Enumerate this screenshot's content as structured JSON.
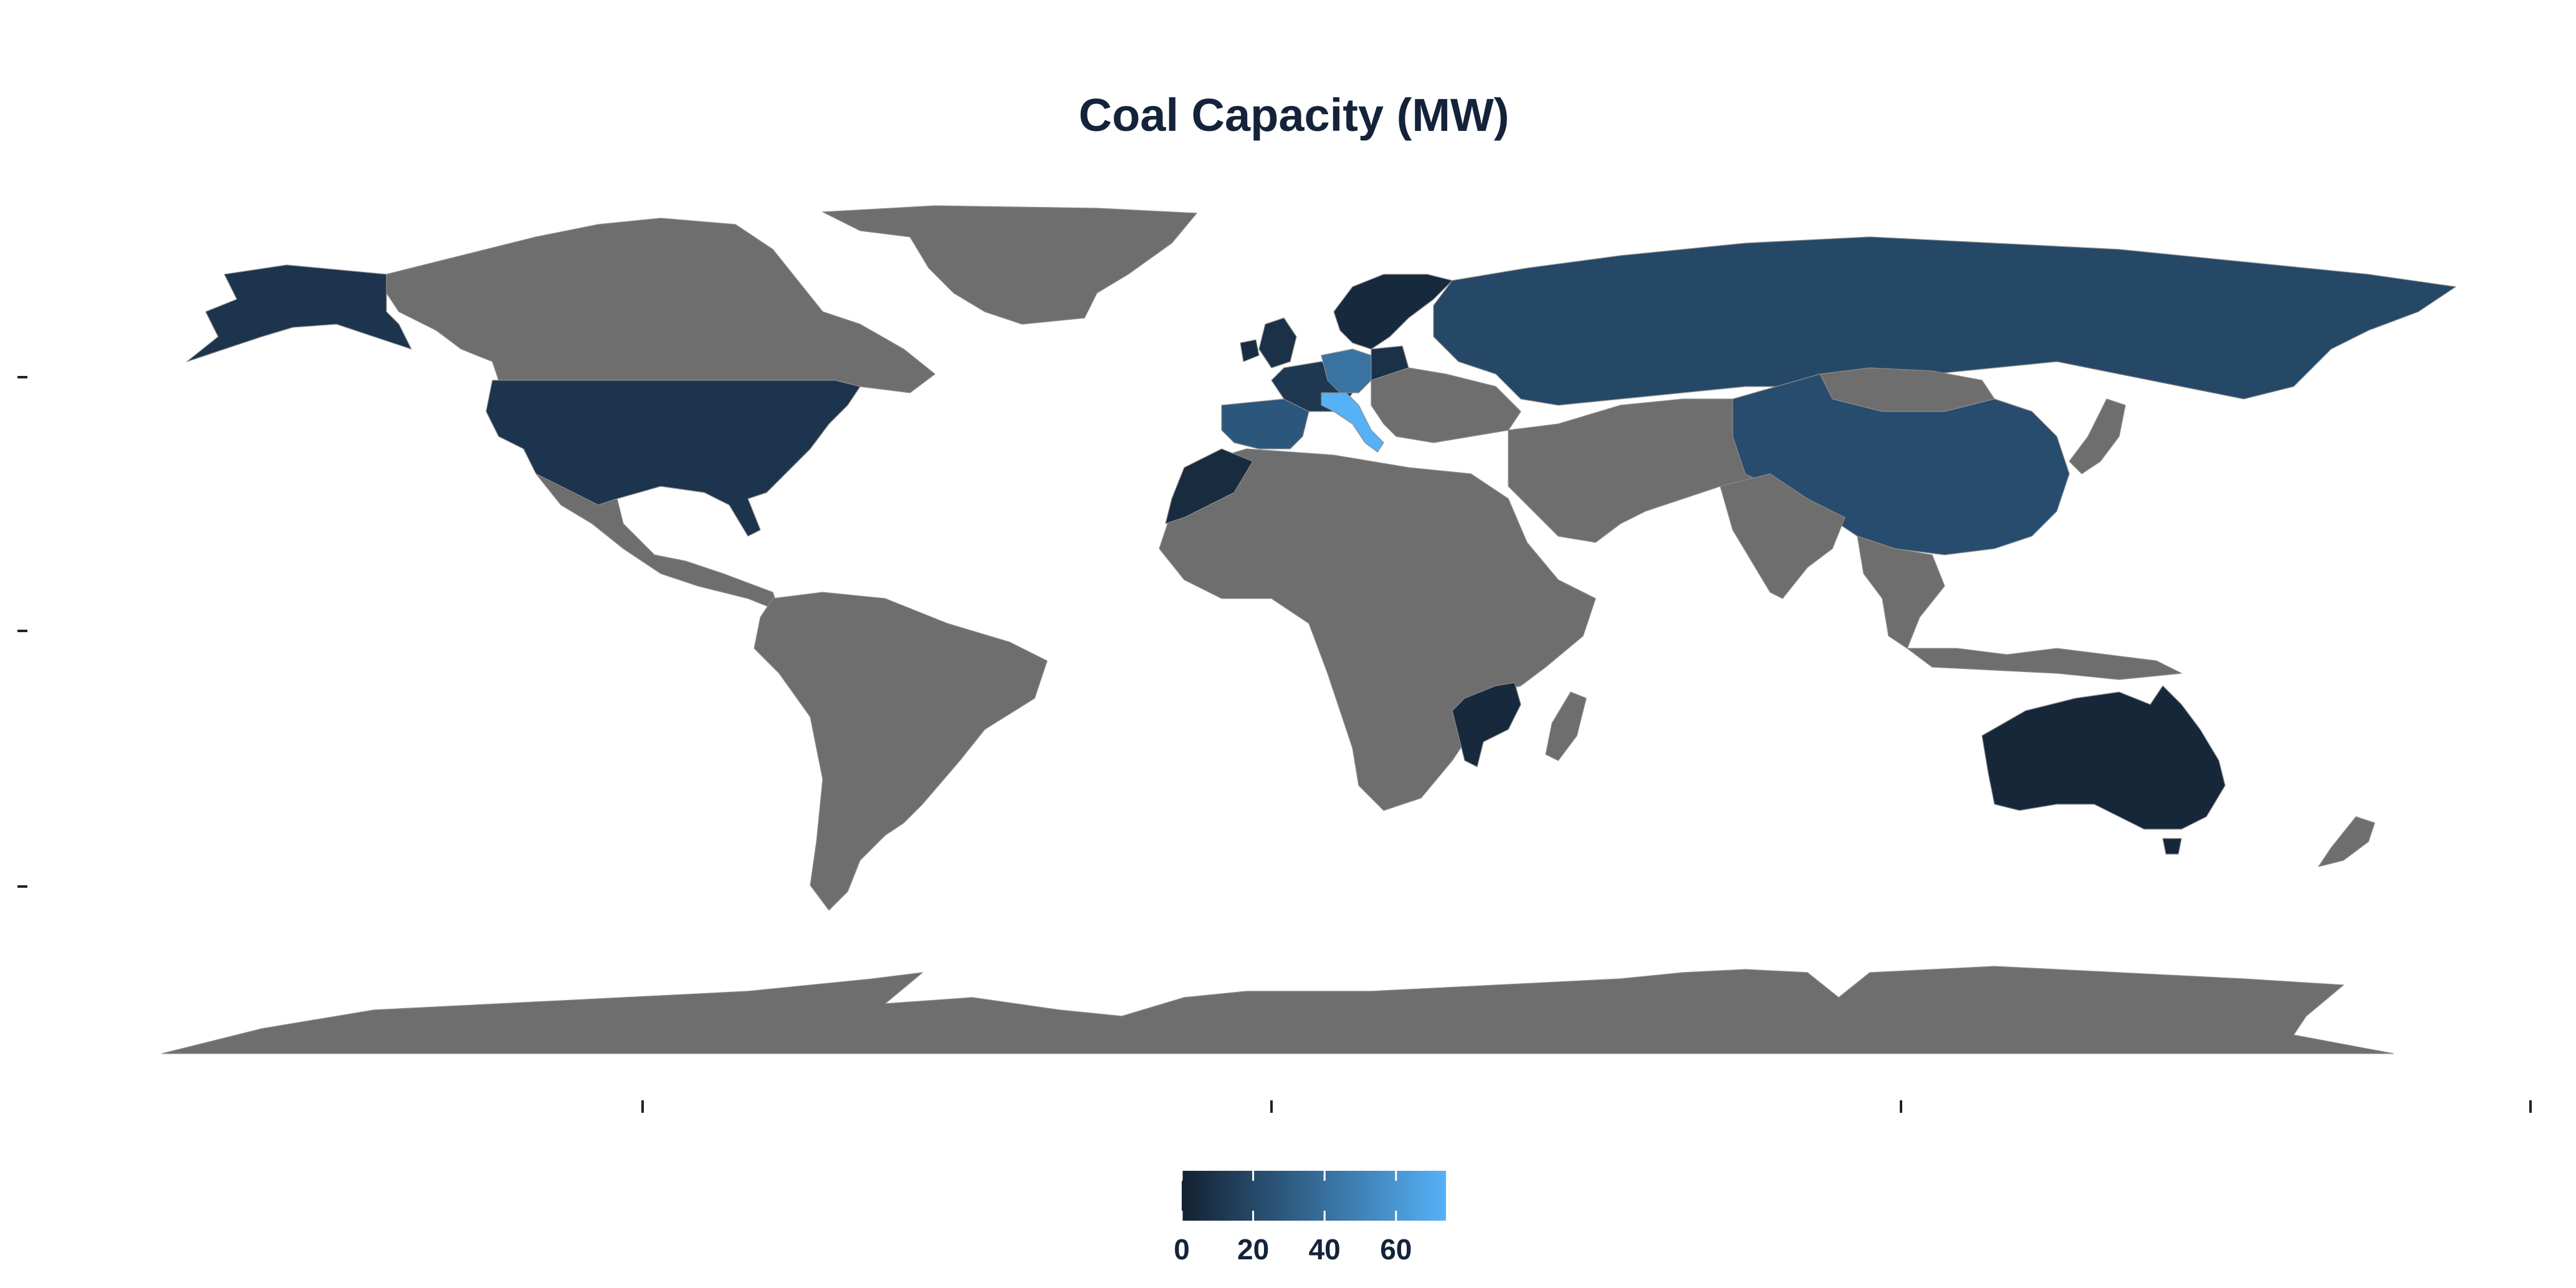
{
  "title": "Coal Capacity (MW)",
  "map": {
    "projection": "equirectangular",
    "no_data_color": "#6e6e6e",
    "background": "#ffffff",
    "regions": [
      {
        "name": "United States",
        "value": 10
      },
      {
        "name": "Alaska",
        "value": 10
      },
      {
        "name": "Canada",
        "value": null
      },
      {
        "name": "Greenland",
        "value": null
      },
      {
        "name": "Mexico",
        "value": null
      },
      {
        "name": "South America",
        "value": null
      },
      {
        "name": "Africa",
        "value": null
      },
      {
        "name": "Morocco",
        "value": 5
      },
      {
        "name": "Mozambique",
        "value": 4
      },
      {
        "name": "Madagascar",
        "value": null
      },
      {
        "name": "Spain",
        "value": 28
      },
      {
        "name": "France",
        "value": 12
      },
      {
        "name": "United Kingdom",
        "value": 8
      },
      {
        "name": "Ireland",
        "value": 6
      },
      {
        "name": "Scandinavia",
        "value": 4
      },
      {
        "name": "Germany",
        "value": 42
      },
      {
        "name": "Poland",
        "value": 8
      },
      {
        "name": "Italy",
        "value": 74
      },
      {
        "name": "Eastern Europe",
        "value": null
      },
      {
        "name": "Russia",
        "value": 20
      },
      {
        "name": "China",
        "value": 22
      },
      {
        "name": "Mongolia",
        "value": null
      },
      {
        "name": "Middle East",
        "value": null
      },
      {
        "name": "Central Asia",
        "value": null
      },
      {
        "name": "India",
        "value": null
      },
      {
        "name": "Southeast Asia",
        "value": null
      },
      {
        "name": "Japan",
        "value": null
      },
      {
        "name": "Indonesia",
        "value": null
      },
      {
        "name": "Australia",
        "value": 3
      },
      {
        "name": "New Zealand",
        "value": null
      },
      {
        "name": "Antarctica",
        "value": null
      }
    ]
  },
  "legend": {
    "min": 0,
    "max": 74,
    "ticks": [
      0,
      20,
      40,
      60
    ],
    "color_low": "#132132",
    "color_high": "#56b1f7"
  }
}
